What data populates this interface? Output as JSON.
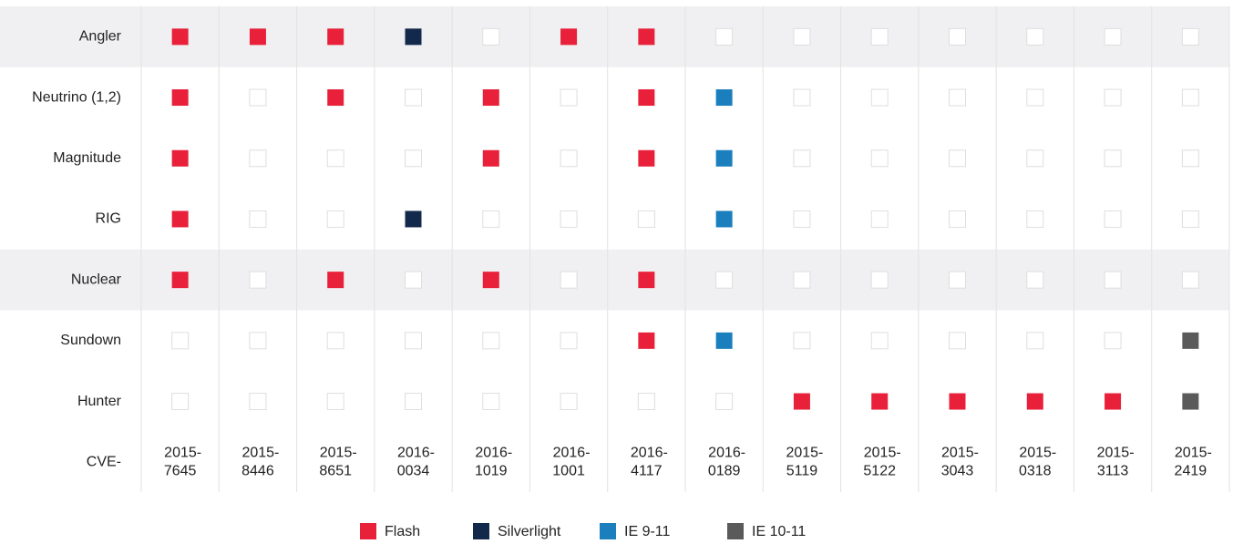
{
  "table": {
    "row_header": "CVE-",
    "columns": [
      {
        "year": "2015-",
        "id": "7645"
      },
      {
        "year": "2015-",
        "id": "8446"
      },
      {
        "year": "2015-",
        "id": "8651"
      },
      {
        "year": "2016-",
        "id": "0034"
      },
      {
        "year": "2016-",
        "id": "1019"
      },
      {
        "year": "2016-",
        "id": "1001"
      },
      {
        "year": "2016-",
        "id": "4117"
      },
      {
        "year": "2016-",
        "id": "0189"
      },
      {
        "year": "2015-",
        "id": "5119"
      },
      {
        "year": "2015-",
        "id": "5122"
      },
      {
        "year": "2015-",
        "id": "3043"
      },
      {
        "year": "2015-",
        "id": "0318"
      },
      {
        "year": "2015-",
        "id": "3113"
      },
      {
        "year": "2015-",
        "id": "2419"
      }
    ],
    "rows": [
      {
        "name": "Angler",
        "shaded": true,
        "cells": [
          0,
          0,
          0,
          1,
          null,
          0,
          0,
          null,
          null,
          null,
          null,
          null,
          null,
          null
        ]
      },
      {
        "name": "Neutrino (1,2)",
        "shaded": false,
        "cells": [
          0,
          null,
          0,
          null,
          0,
          null,
          0,
          2,
          null,
          null,
          null,
          null,
          null,
          null
        ]
      },
      {
        "name": "Magnitude",
        "shaded": false,
        "cells": [
          0,
          null,
          null,
          null,
          0,
          null,
          0,
          2,
          null,
          null,
          null,
          null,
          null,
          null
        ]
      },
      {
        "name": "RIG",
        "shaded": false,
        "cells": [
          0,
          null,
          null,
          1,
          null,
          null,
          null,
          2,
          null,
          null,
          null,
          null,
          null,
          null
        ]
      },
      {
        "name": "Nuclear",
        "shaded": true,
        "cells": [
          0,
          null,
          0,
          null,
          0,
          null,
          0,
          null,
          null,
          null,
          null,
          null,
          null,
          null
        ]
      },
      {
        "name": "Sundown",
        "shaded": false,
        "cells": [
          null,
          null,
          null,
          null,
          null,
          null,
          0,
          2,
          null,
          null,
          null,
          null,
          null,
          3
        ]
      },
      {
        "name": "Hunter",
        "shaded": false,
        "cells": [
          null,
          null,
          null,
          null,
          null,
          null,
          null,
          null,
          0,
          0,
          0,
          0,
          0,
          3
        ]
      }
    ],
    "legend": [
      {
        "name": "Flash",
        "color": "#e8203a"
      },
      {
        "name": "Silverlight",
        "color": "#13294b"
      },
      {
        "name": "IE 9-11",
        "color": "#1b7fbd"
      },
      {
        "name": "IE 10-11",
        "color": "#5a5a5a"
      }
    ]
  }
}
